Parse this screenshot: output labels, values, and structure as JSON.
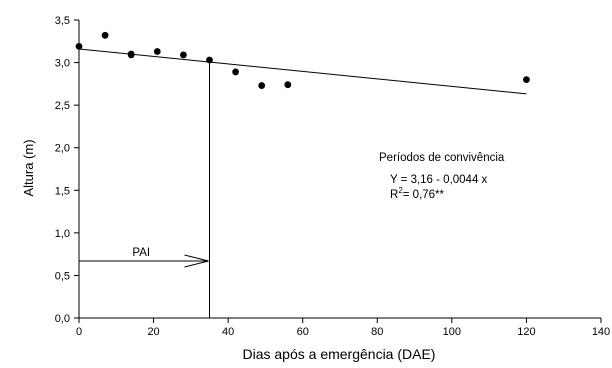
{
  "chart_data": {
    "type": "scatter",
    "xlabel": "Dias após a emergência (DAE)",
    "ylabel": "Altura (m)",
    "xlim": [
      0,
      140
    ],
    "ylim": [
      0.0,
      3.5
    ],
    "x_ticks": [
      "0",
      "20",
      "40",
      "60",
      "80",
      "100",
      "120",
      "140"
    ],
    "y_ticks": [
      "0,0",
      "0,5",
      "1,0",
      "1,5",
      "2,0",
      "2,5",
      "3,0",
      "3,5"
    ],
    "points": [
      {
        "x": 0,
        "y": 3.19
      },
      {
        "x": 7,
        "y": 3.32
      },
      {
        "x": 14,
        "y": 3.09
      },
      {
        "x": 14,
        "y": 3.1
      },
      {
        "x": 21,
        "y": 3.13
      },
      {
        "x": 28,
        "y": 3.09
      },
      {
        "x": 35,
        "y": 3.03
      },
      {
        "x": 42,
        "y": 2.89
      },
      {
        "x": 49,
        "y": 2.73
      },
      {
        "x": 56,
        "y": 2.74
      },
      {
        "x": 120,
        "y": 2.8
      }
    ],
    "fit_line": {
      "intercept": 3.16,
      "slope": -0.0044,
      "x_range": [
        0,
        120
      ]
    },
    "pai": {
      "label": "PAI",
      "x": 35,
      "y": 0.67
    },
    "annotation": {
      "title": "Períodos de convivência",
      "equation": "Y = 3,16 - 0,0044 x",
      "r2_prefix": "R",
      "r2_sup": "2",
      "r2_value": "= 0,76**"
    },
    "grid": false,
    "legend": "none"
  }
}
